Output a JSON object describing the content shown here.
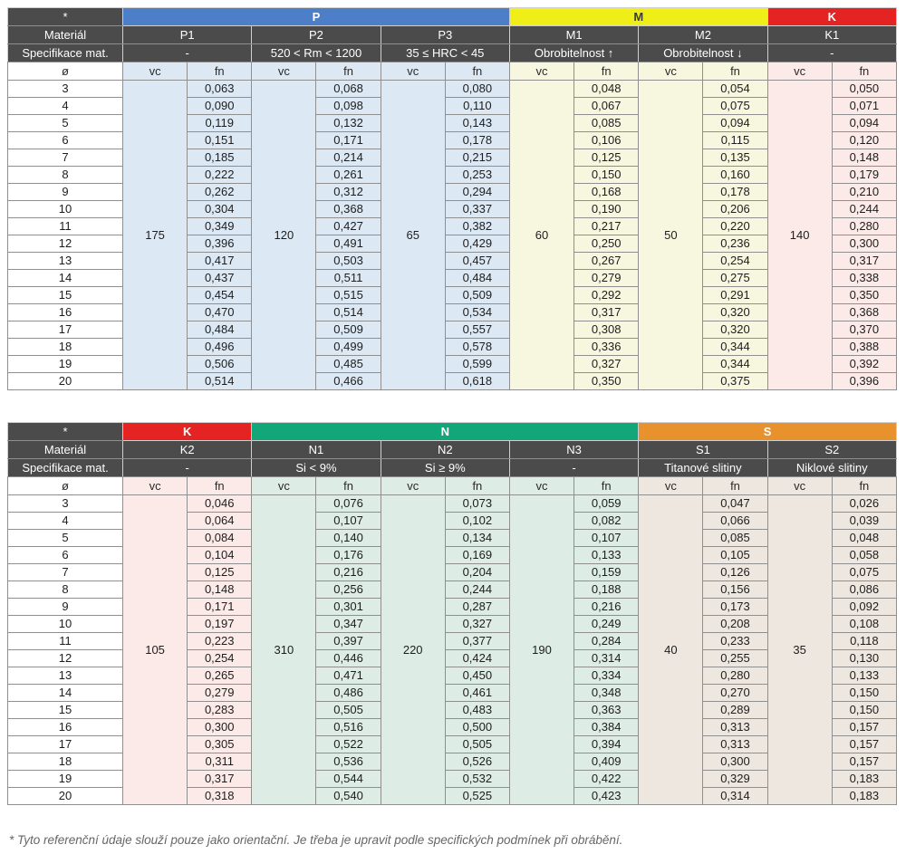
{
  "labels": {
    "star": "*",
    "material": "Materiál",
    "spec": "Specifikace mat.",
    "diameter": "ø",
    "vc": "vc",
    "fn": "fn"
  },
  "footnote": "* Tyto referenční údaje slouží pouze jako orientační. Je třeba je upravit podle specifických podmínek při obrábění.",
  "diameters": [
    3,
    4,
    5,
    6,
    7,
    8,
    9,
    10,
    11,
    12,
    13,
    14,
    15,
    16,
    17,
    18,
    19,
    20
  ],
  "tables": [
    {
      "name": "cutting-data-table-1",
      "groups": [
        {
          "label": "P",
          "color": "#4d7ec8",
          "text_color": "#ffffff",
          "tint": "#dce9f5",
          "materials": [
            {
              "code": "P1",
              "spec": "-",
              "vc": "175",
              "fn": [
                "0,063",
                "0,090",
                "0,119",
                "0,151",
                "0,185",
                "0,222",
                "0,262",
                "0,304",
                "0,349",
                "0,396",
                "0,417",
                "0,437",
                "0,454",
                "0,470",
                "0,484",
                "0,496",
                "0,506",
                "0,514"
              ]
            },
            {
              "code": "P2",
              "spec": "520 < Rm < 1200",
              "vc": "120",
              "fn": [
                "0,068",
                "0,098",
                "0,132",
                "0,171",
                "0,214",
                "0,261",
                "0,312",
                "0,368",
                "0,427",
                "0,491",
                "0,503",
                "0,511",
                "0,515",
                "0,514",
                "0,509",
                "0,499",
                "0,485",
                "0,466"
              ]
            },
            {
              "code": "P3",
              "spec": "35 ≤ HRC < 45",
              "vc": "65",
              "fn": [
                "0,080",
                "0,110",
                "0,143",
                "0,178",
                "0,215",
                "0,253",
                "0,294",
                "0,337",
                "0,382",
                "0,429",
                "0,457",
                "0,484",
                "0,509",
                "0,534",
                "0,557",
                "0,578",
                "0,599",
                "0,618"
              ]
            }
          ]
        },
        {
          "label": "M",
          "color": "#f0ee17",
          "text_color": "#3a3a3a",
          "tint": "#f7f7e0",
          "materials": [
            {
              "code": "M1",
              "spec": "Obrobitelnost ↑",
              "vc": "60",
              "fn": [
                "0,048",
                "0,067",
                "0,085",
                "0,106",
                "0,125",
                "0,150",
                "0,168",
                "0,190",
                "0,217",
                "0,250",
                "0,267",
                "0,279",
                "0,292",
                "0,317",
                "0,308",
                "0,336",
                "0,327",
                "0,350"
              ]
            },
            {
              "code": "M2",
              "spec": "Obrobitelnost ↓",
              "vc": "50",
              "fn": [
                "0,054",
                "0,075",
                "0,094",
                "0,115",
                "0,135",
                "0,160",
                "0,178",
                "0,206",
                "0,220",
                "0,236",
                "0,254",
                "0,275",
                "0,291",
                "0,320",
                "0,320",
                "0,344",
                "0,344",
                "0,375"
              ]
            }
          ]
        },
        {
          "label": "K",
          "color": "#e42322",
          "text_color": "#ffffff",
          "tint": "#fbeae8",
          "materials": [
            {
              "code": "K1",
              "spec": "-",
              "vc": "140",
              "fn": [
                "0,050",
                "0,071",
                "0,094",
                "0,120",
                "0,148",
                "0,179",
                "0,210",
                "0,244",
                "0,280",
                "0,300",
                "0,317",
                "0,338",
                "0,350",
                "0,368",
                "0,370",
                "0,388",
                "0,392",
                "0,396"
              ]
            }
          ]
        }
      ]
    },
    {
      "name": "cutting-data-table-2",
      "groups": [
        {
          "label": "K",
          "color": "#e42322",
          "text_color": "#ffffff",
          "tint": "#fbeae8",
          "materials": [
            {
              "code": "K2",
              "spec": "-",
              "vc": "105",
              "fn": [
                "0,046",
                "0,064",
                "0,084",
                "0,104",
                "0,125",
                "0,148",
                "0,171",
                "0,197",
                "0,223",
                "0,254",
                "0,265",
                "0,279",
                "0,283",
                "0,300",
                "0,305",
                "0,311",
                "0,317",
                "0,318"
              ]
            }
          ]
        },
        {
          "label": "N",
          "color": "#12a778",
          "text_color": "#ffffff",
          "tint": "#ddece5",
          "materials": [
            {
              "code": "N1",
              "spec": "Si < 9%",
              "vc": "310",
              "fn": [
                "0,076",
                "0,107",
                "0,140",
                "0,176",
                "0,216",
                "0,256",
                "0,301",
                "0,347",
                "0,397",
                "0,446",
                "0,471",
                "0,486",
                "0,505",
                "0,516",
                "0,522",
                "0,536",
                "0,544",
                "0,540"
              ]
            },
            {
              "code": "N2",
              "spec": "Si ≥ 9%",
              "vc": "220",
              "fn": [
                "0,073",
                "0,102",
                "0,134",
                "0,169",
                "0,204",
                "0,244",
                "0,287",
                "0,327",
                "0,377",
                "0,424",
                "0,450",
                "0,461",
                "0,483",
                "0,500",
                "0,505",
                "0,526",
                "0,532",
                "0,525"
              ]
            },
            {
              "code": "N3",
              "spec": "-",
              "vc": "190",
              "fn": [
                "0,059",
                "0,082",
                "0,107",
                "0,133",
                "0,159",
                "0,188",
                "0,216",
                "0,249",
                "0,284",
                "0,314",
                "0,334",
                "0,348",
                "0,363",
                "0,384",
                "0,394",
                "0,409",
                "0,422",
                "0,423"
              ]
            }
          ]
        },
        {
          "label": "S",
          "color": "#e8922d",
          "text_color": "#ffffff",
          "tint": "#eee7df",
          "materials": [
            {
              "code": "S1",
              "spec": "Titanové slitiny",
              "vc": "40",
              "fn": [
                "0,047",
                "0,066",
                "0,085",
                "0,105",
                "0,126",
                "0,156",
                "0,173",
                "0,208",
                "0,233",
                "0,255",
                "0,280",
                "0,270",
                "0,289",
                "0,313",
                "0,313",
                "0,300",
                "0,329",
                "0,314"
              ]
            },
            {
              "code": "S2",
              "spec": "Niklové slitiny",
              "vc": "35",
              "fn": [
                "0,026",
                "0,039",
                "0,048",
                "0,058",
                "0,075",
                "0,086",
                "0,092",
                "0,108",
                "0,118",
                "0,130",
                "0,133",
                "0,150",
                "0,150",
                "0,157",
                "0,157",
                "0,157",
                "0,183",
                "0,183"
              ]
            }
          ]
        }
      ]
    }
  ]
}
